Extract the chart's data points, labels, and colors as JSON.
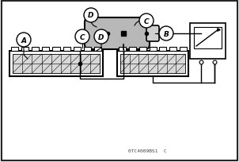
{
  "bg_color": "#ffffff",
  "border_color": "#000000",
  "label_A": "A",
  "label_B": "B",
  "label_C": "C",
  "label_D": "D",
  "watermark": "0TC4009BS1  C",
  "fig_bg": "#e0e0e0",
  "sensor_color": "#b8b8b8",
  "connector_fill": "#d0d0d0"
}
